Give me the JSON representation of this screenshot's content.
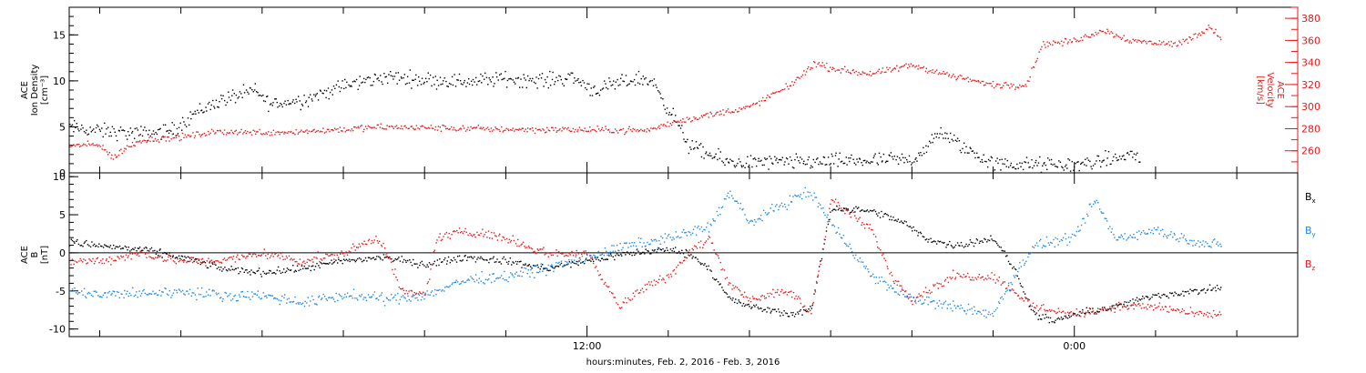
{
  "chart_data": {
    "type": "scatter",
    "xlabel": "hours:minutes, Feb.  2, 2016 - Feb.  3, 2016",
    "x_ticks": [
      {
        "t": 12,
        "label": "12:00"
      },
      {
        "t": 24,
        "label": "0:00"
      }
    ],
    "x_range_hours": [
      -0.75,
      29.5
    ],
    "panels": [
      {
        "id": "plasma",
        "left_axis": {
          "label_lines": [
            "ACE",
            "Ion Density",
            "[cm⁻³]"
          ],
          "ylim": [
            0,
            18
          ],
          "ticks": [
            0,
            5,
            10,
            15
          ],
          "color": "#000000"
        },
        "right_axis": {
          "label_lines": [
            "ACE",
            "Velocity",
            "[km/s]"
          ],
          "ylim": [
            240,
            390
          ],
          "ticks": [
            260,
            280,
            300,
            320,
            340,
            360,
            380
          ],
          "color": "#e41a1c"
        },
        "series": [
          {
            "axis": "left",
            "color": "#000000",
            "noise": 0.7,
            "points": [
              [
                -0.75,
                5
              ],
              [
                0,
                4.6
              ],
              [
                1,
                4.3
              ],
              [
                1.8,
                4.7
              ],
              [
                2.3,
                6.5
              ],
              [
                3,
                8
              ],
              [
                3.8,
                9
              ],
              [
                4.2,
                7.5
              ],
              [
                5,
                8
              ],
              [
                6,
                9.5
              ],
              [
                7,
                10.5
              ],
              [
                8,
                10.2
              ],
              [
                9,
                10
              ],
              [
                10,
                10.3
              ],
              [
                11,
                10.1
              ],
              [
                11.6,
                10.5
              ],
              [
                12.2,
                9
              ],
              [
                13.2,
                10.3
              ],
              [
                13.6,
                10
              ],
              [
                14.2,
                5.5
              ],
              [
                14.5,
                3
              ],
              [
                15,
                2
              ],
              [
                15.5,
                1.2
              ],
              [
                17,
                1.2
              ],
              [
                19,
                1.4
              ],
              [
                20,
                1.5
              ],
              [
                20.4,
                3
              ],
              [
                20.7,
                4.5
              ],
              [
                21.2,
                3
              ],
              [
                21.5,
                2.2
              ],
              [
                22,
                1
              ],
              [
                24,
                0.9
              ],
              [
                25,
                1.6
              ],
              [
                25.4,
                2.1
              ],
              [
                25.6,
                1.6
              ]
            ]
          },
          {
            "axis": "right",
            "color": "#e41a1c",
            "noise": 2.5,
            "points": [
              [
                -0.75,
                265
              ],
              [
                0,
                266
              ],
              [
                0.3,
                254
              ],
              [
                0.6,
                262
              ],
              [
                1,
                270
              ],
              [
                2,
                273
              ],
              [
                3,
                278
              ],
              [
                4,
                277
              ],
              [
                5,
                278
              ],
              [
                7,
                282
              ],
              [
                10,
                280
              ],
              [
                13.5,
                279
              ],
              [
                14.2,
                287
              ],
              [
                15,
                293
              ],
              [
                16,
                300
              ],
              [
                17,
                320
              ],
              [
                17.6,
                340
              ],
              [
                18,
                335
              ],
              [
                19,
                330
              ],
              [
                20,
                338
              ],
              [
                21,
                328
              ],
              [
                22,
                320
              ],
              [
                22.8,
                320
              ],
              [
                23.2,
                357
              ],
              [
                24,
                360
              ],
              [
                24.7,
                370
              ],
              [
                25.4,
                360
              ],
              [
                26.5,
                357
              ],
              [
                27,
                365
              ],
              [
                27.3,
                373
              ],
              [
                27.6,
                363
              ]
            ]
          }
        ]
      },
      {
        "id": "magnetic",
        "left_axis": {
          "label_lines": [
            "ACE",
            "B",
            "[nT]"
          ],
          "ylim": [
            -11,
            10.5
          ],
          "ticks": [
            -10,
            -5,
            0,
            5,
            10
          ],
          "color": "#000000"
        },
        "zero_line": true,
        "series": [
          {
            "name": "B",
            "subscript": "x",
            "axis": "left",
            "color": "#000000",
            "noise": 0.4,
            "points": [
              [
                -0.75,
                1.5
              ],
              [
                0,
                1
              ],
              [
                1,
                0.5
              ],
              [
                2,
                -0.5
              ],
              [
                3,
                -2
              ],
              [
                4,
                -2.5
              ],
              [
                5,
                -2
              ],
              [
                6,
                -1
              ],
              [
                7,
                -0.5
              ],
              [
                8,
                -1.5
              ],
              [
                9,
                -0.5
              ],
              [
                10,
                -1
              ],
              [
                11,
                -2
              ],
              [
                12,
                -1
              ],
              [
                13,
                0
              ],
              [
                14,
                0.5
              ],
              [
                14.5,
                0
              ],
              [
                15,
                -2
              ],
              [
                15.5,
                -6
              ],
              [
                16,
                -7
              ],
              [
                17,
                -8
              ],
              [
                17.5,
                -7.5
              ],
              [
                18,
                6
              ],
              [
                19,
                5.5
              ],
              [
                19.8,
                4
              ],
              [
                20.3,
                2
              ],
              [
                21,
                1
              ],
              [
                22,
                2
              ],
              [
                22.5,
                -2
              ],
              [
                23,
                -8
              ],
              [
                23.5,
                -9
              ],
              [
                24,
                -8
              ],
              [
                25,
                -7
              ],
              [
                26,
                -5.5
              ],
              [
                27,
                -5
              ],
              [
                27.6,
                -4.5
              ]
            ]
          },
          {
            "name": "B",
            "subscript": "y",
            "axis": "left",
            "color": "#1e88e5",
            "noise": 0.6,
            "points": [
              [
                -0.75,
                -5
              ],
              [
                0,
                -5.5
              ],
              [
                2,
                -5
              ],
              [
                3,
                -5.5
              ],
              [
                4,
                -5.5
              ],
              [
                5,
                -6.5
              ],
              [
                6,
                -5.5
              ],
              [
                7,
                -6
              ],
              [
                8,
                -5.5
              ],
              [
                9,
                -3.5
              ],
              [
                10,
                -3
              ],
              [
                11,
                -2
              ],
              [
                12,
                -0.5
              ],
              [
                13,
                1
              ],
              [
                14,
                2
              ],
              [
                15,
                3.5
              ],
              [
                15.5,
                8
              ],
              [
                16,
                4
              ],
              [
                17,
                7
              ],
              [
                17.5,
                8
              ],
              [
                18,
                4
              ],
              [
                19,
                -3
              ],
              [
                20,
                -6
              ],
              [
                21,
                -7
              ],
              [
                22,
                -8
              ],
              [
                22.5,
                -3
              ],
              [
                23,
                1
              ],
              [
                24,
                2
              ],
              [
                24.5,
                7
              ],
              [
                25,
                2
              ],
              [
                26,
                3
              ],
              [
                27,
                1.5
              ],
              [
                27.6,
                1
              ]
            ]
          },
          {
            "name": "B",
            "subscript": "z",
            "axis": "left",
            "color": "#e41a1c",
            "noise": 0.5,
            "points": [
              [
                -0.75,
                -1
              ],
              [
                0,
                -1
              ],
              [
                1,
                0
              ],
              [
                2,
                -1
              ],
              [
                3,
                -1
              ],
              [
                4,
                0
              ],
              [
                5,
                -1
              ],
              [
                6,
                0
              ],
              [
                6.8,
                2
              ],
              [
                7,
                1
              ],
              [
                7.4,
                -5
              ],
              [
                8,
                -5.5
              ],
              [
                8.3,
                2
              ],
              [
                9,
                3
              ],
              [
                10,
                2
              ],
              [
                11,
                0
              ],
              [
                12,
                0
              ],
              [
                12.8,
                -7
              ],
              [
                13.5,
                -4
              ],
              [
                14,
                -3
              ],
              [
                14.5,
                0
              ],
              [
                15,
                2
              ],
              [
                15.5,
                -4
              ],
              [
                16,
                -6
              ],
              [
                17,
                -5
              ],
              [
                17.5,
                -8
              ],
              [
                18,
                7
              ],
              [
                19,
                3
              ],
              [
                19.5,
                -3
              ],
              [
                20,
                -6
              ],
              [
                21,
                -3
              ],
              [
                22,
                -3
              ],
              [
                22.5,
                -5
              ],
              [
                23,
                -7
              ],
              [
                24,
                -8
              ],
              [
                25,
                -7
              ],
              [
                26,
                -7
              ],
              [
                27,
                -8
              ],
              [
                27.6,
                -8
              ]
            ]
          }
        ]
      }
    ],
    "legend": [
      {
        "name": "B",
        "subscript": "x",
        "color": "#000000"
      },
      {
        "name": "B",
        "subscript": "y",
        "color": "#1e88e5"
      },
      {
        "name": "B",
        "subscript": "z",
        "color": "#e41a1c"
      }
    ]
  }
}
